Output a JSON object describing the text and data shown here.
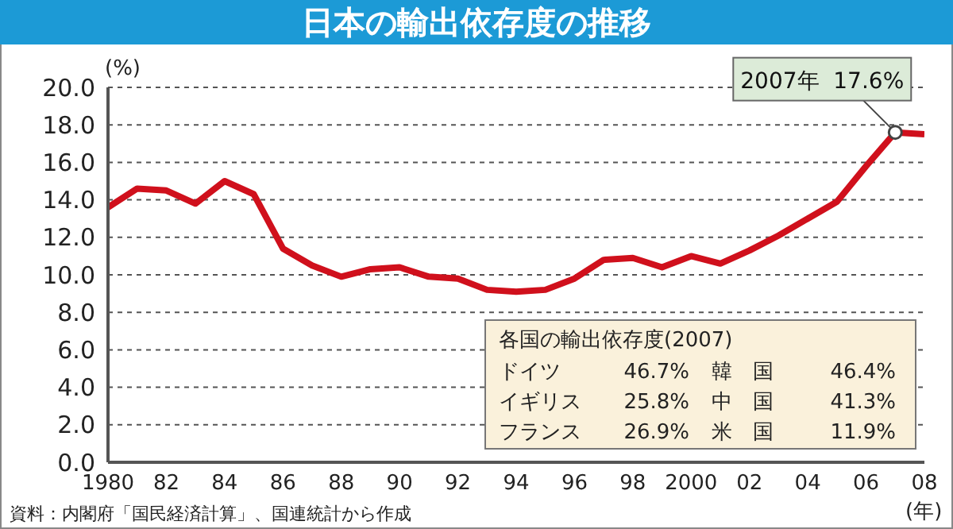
{
  "chart_data": {
    "type": "line",
    "title": "日本の輸出依存度の推移",
    "xlabel": "(年)",
    "ylabel": "(%)",
    "x": [
      1980,
      1981,
      1982,
      1983,
      1984,
      1985,
      1986,
      1987,
      1988,
      1989,
      1990,
      1991,
      1992,
      1993,
      1994,
      1995,
      1996,
      1997,
      1998,
      1999,
      2000,
      2001,
      2002,
      2003,
      2004,
      2005,
      2006,
      2007,
      2008
    ],
    "series": [
      {
        "color": "#d0101c",
        "values": [
          13.6,
          14.6,
          14.5,
          13.8,
          15.0,
          14.3,
          11.4,
          10.5,
          9.9,
          10.3,
          10.4,
          9.9,
          9.8,
          9.2,
          9.1,
          9.2,
          9.8,
          10.8,
          10.9,
          10.4,
          11.0,
          10.6,
          11.3,
          12.1,
          13.0,
          13.9,
          15.8,
          17.6,
          17.5
        ]
      }
    ],
    "xlim": [
      1980,
      2008
    ],
    "xticks": [
      1980,
      {
        "value": 1982,
        "label": "82"
      },
      {
        "value": 1984,
        "label": "84"
      },
      {
        "value": 1986,
        "label": "86"
      },
      {
        "value": 1988,
        "label": "88"
      },
      {
        "value": 1990,
        "label": "90"
      },
      {
        "value": 1992,
        "label": "92"
      },
      {
        "value": 1994,
        "label": "94"
      },
      {
        "value": 1996,
        "label": "96"
      },
      {
        "value": 1998,
        "label": "98"
      },
      2000,
      {
        "value": 2002,
        "label": "02"
      },
      {
        "value": 2004,
        "label": "04"
      },
      {
        "value": 2006,
        "label": "06"
      },
      {
        "value": 2008,
        "label": "08"
      }
    ],
    "ylim": [
      0,
      20
    ],
    "yticks": [
      {
        "value": 0,
        "label": "0.0"
      },
      {
        "value": 2,
        "label": "2.0"
      },
      {
        "value": 4,
        "label": "4.0"
      },
      {
        "value": 6,
        "label": "6.0"
      },
      {
        "value": 8,
        "label": "8.0"
      },
      {
        "value": 10,
        "label": "10.0"
      },
      {
        "value": 12,
        "label": "12.0"
      },
      {
        "value": 14,
        "label": "14.0"
      },
      {
        "value": 16,
        "label": "16.0"
      },
      {
        "value": 18,
        "label": "18.0"
      },
      {
        "value": 20,
        "label": "20.0"
      }
    ],
    "grid": "y",
    "marker": "none",
    "line_style": "solid",
    "annotations": [
      {
        "text": "2007年  17.6%",
        "x": 2007,
        "y": 17.6
      },
      "各国の輸出依存度(2007)",
      "ドイツ",
      "46.7%",
      "韓　国",
      "46.4%",
      "イギリス",
      "25.8%",
      "中　国",
      "41.3%",
      "フランス",
      "26.9%",
      "米　国",
      "11.9%",
      "資料：内閣府「国民経済計算」、国連統計から作成"
    ]
  }
}
